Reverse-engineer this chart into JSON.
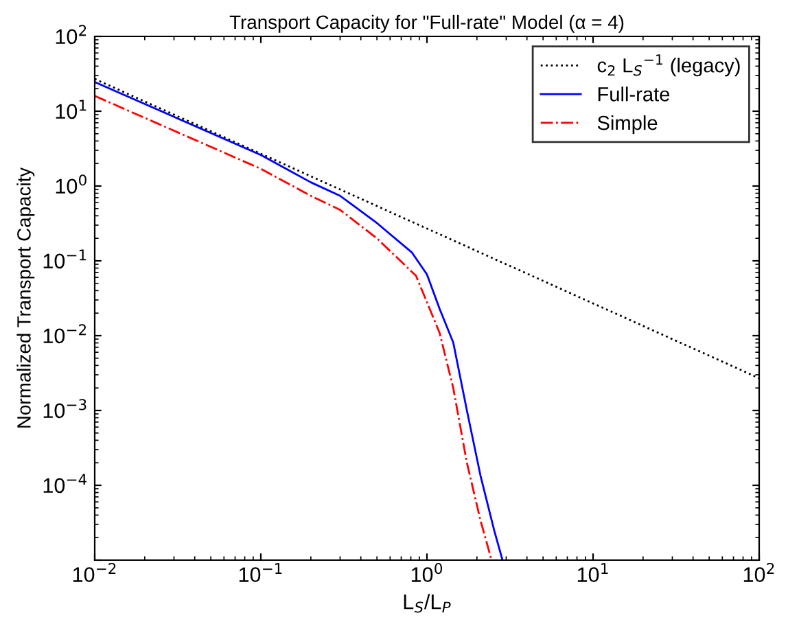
{
  "chart_data": {
    "type": "line",
    "title": "Transport Capacity for \"Full-rate\" Model (α = 4)",
    "xlabel": "L$_{S}$/L$_{P}$",
    "ylabel": "Normalized Transport Capacity",
    "log": "xy",
    "grid": false,
    "legend": "top right",
    "xlim": [
      0.01,
      100
    ],
    "ylim": [
      1e-05,
      100
    ],
    "xticks": [
      {
        "value": 0.01,
        "label": "10$^{−2}$"
      },
      {
        "value": 0.1,
        "label": "10$^{−1}$"
      },
      {
        "value": 1,
        "label": "10$^{0}$"
      },
      {
        "value": 10,
        "label": "10$^{1}$"
      },
      {
        "value": 100,
        "label": "10$^{2}$"
      }
    ],
    "yticks": [
      {
        "value": 1e-05,
        "label": null
      },
      {
        "value": 0.0001,
        "label": "10$^{−4}$"
      },
      {
        "value": 0.001,
        "label": "10$^{−3}$"
      },
      {
        "value": 0.01,
        "label": "10$^{−2}$"
      },
      {
        "value": 0.1,
        "label": "10$^{−1}$"
      },
      {
        "value": 1,
        "label": "10$^{0}$"
      },
      {
        "value": 10,
        "label": "10$^{1}$"
      },
      {
        "value": 100,
        "label": "10$^{2}$"
      }
    ],
    "series": [
      {
        "name": "c$_{2}$ L$_{S}$$^{−1}$ (legacy)",
        "color": "#000000",
        "line_style": "dotted",
        "x": [
          0.01,
          0.1,
          1,
          10,
          100
        ],
        "values": [
          27,
          2.7,
          0.27,
          0.027,
          0.0027
        ]
      },
      {
        "name": "Full-rate",
        "color": "#0000ff",
        "line_style": "solid",
        "x": [
          0.01,
          0.1,
          0.2,
          0.3,
          0.5,
          0.81,
          1,
          1.19,
          1.44,
          1.74,
          2.1,
          2.54,
          2.85
        ],
        "values": [
          24.5,
          2.6,
          1.12,
          0.74,
          0.32,
          0.13,
          0.066,
          0.023,
          0.0081,
          0.001,
          0.000135,
          2.5e-05,
          1e-05
        ]
      },
      {
        "name": "Simple",
        "color": "#ff0000",
        "line_style": "dashdot",
        "x": [
          0.01,
          0.1,
          0.2,
          0.3,
          0.5,
          0.86,
          1.19,
          1.44,
          1.74,
          2.1,
          2.45
        ],
        "values": [
          16,
          1.7,
          0.74,
          0.48,
          0.2,
          0.063,
          0.011,
          0.002,
          0.0002,
          3.4e-05,
          1e-05
        ]
      }
    ]
  }
}
